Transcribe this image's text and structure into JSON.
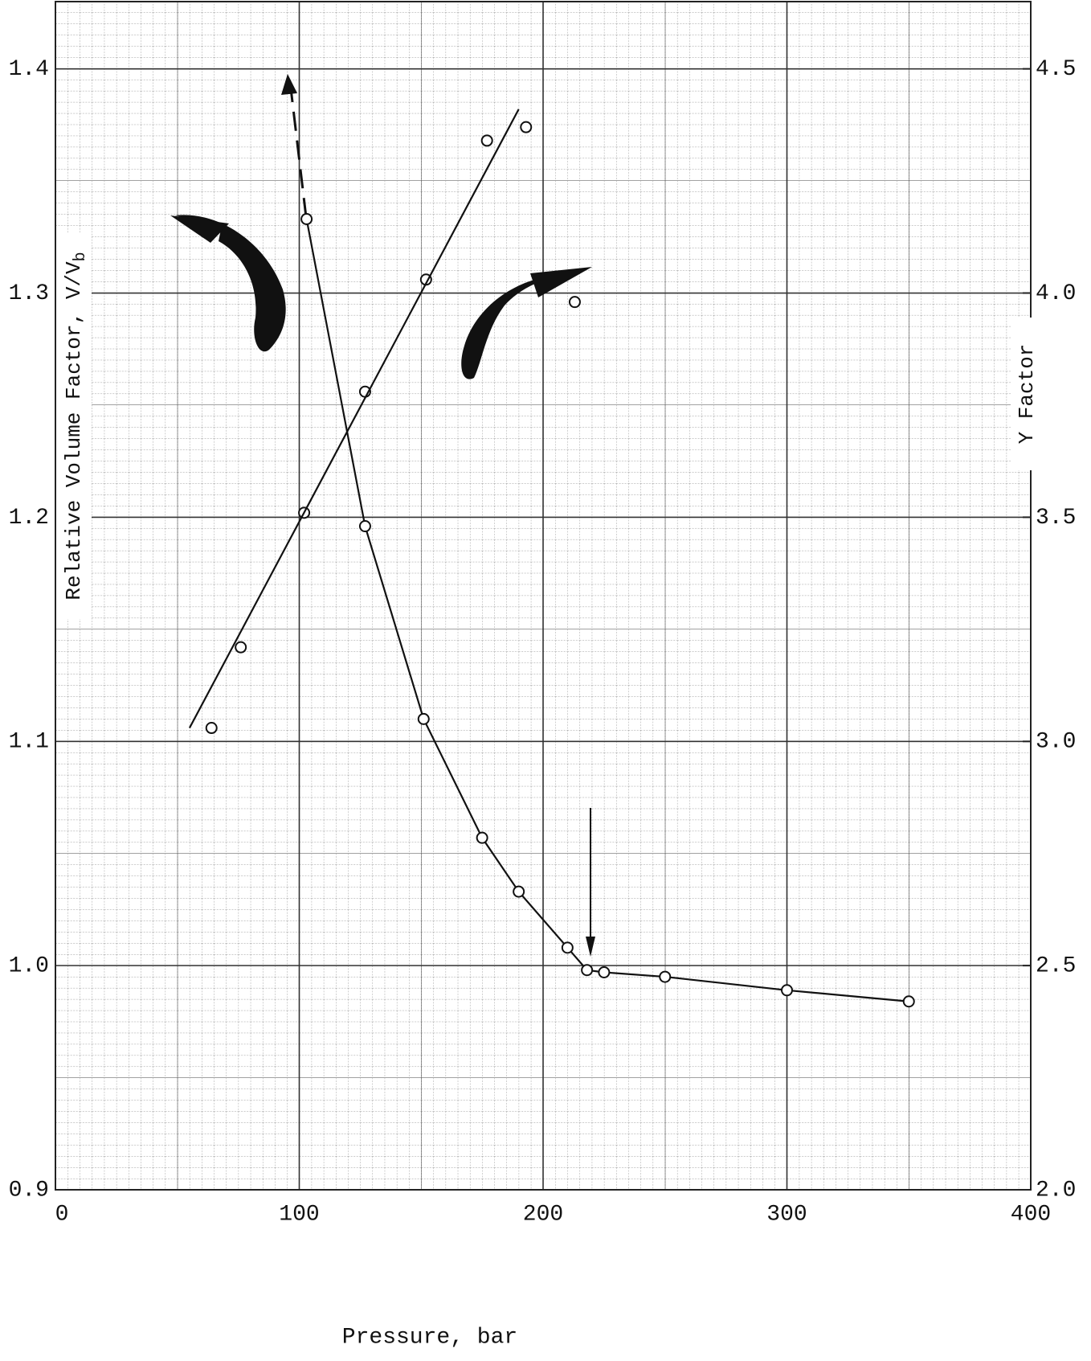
{
  "chart_data": {
    "type": "line",
    "x_label": "Pressure, bar",
    "y_label": "Relative Volume Factor, V/V",
    "y_label_subscript": "b",
    "y2_label": "Y Factor",
    "xlim": [
      0,
      400
    ],
    "xticks": [
      0,
      100,
      200,
      300,
      400
    ],
    "ylim": [
      0.9,
      1.43
    ],
    "yticks": [
      0.9,
      {
        "value": 1.0,
        "label": "1.0"
      },
      1.1,
      1.2,
      1.3,
      1.4
    ],
    "y2lim": [
      2.0,
      4.65
    ],
    "y2ticks": [
      {
        "value": 2.0,
        "label": "2.0"
      },
      2.5,
      {
        "value": 3.0,
        "label": "3.0"
      },
      3.5,
      {
        "value": 4.0,
        "label": "4.0"
      },
      4.5
    ],
    "grid": true,
    "series": [
      {
        "axis": "y",
        "color": "#111",
        "markers": true,
        "line": true,
        "x": [
          103,
          127,
          151,
          175,
          190,
          210,
          218,
          225,
          250,
          300,
          350
        ],
        "values": [
          1.333,
          1.196,
          1.11,
          1.057,
          1.033,
          1.008,
          0.998,
          0.997,
          0.995,
          0.989,
          0.984
        ]
      },
      {
        "axis": "y2",
        "color": "#111",
        "markers": true,
        "line": false,
        "x": [
          64,
          76,
          102,
          127,
          152,
          177,
          193,
          213
        ],
        "values": [
          3.03,
          3.21,
          3.51,
          3.78,
          4.03,
          4.34,
          4.37,
          3.98
        ]
      },
      {
        "axis": "y2",
        "color": "#111",
        "markers": false,
        "line": true,
        "x": [
          55,
          190
        ],
        "values": [
          3.03,
          4.41
        ]
      }
    ]
  }
}
